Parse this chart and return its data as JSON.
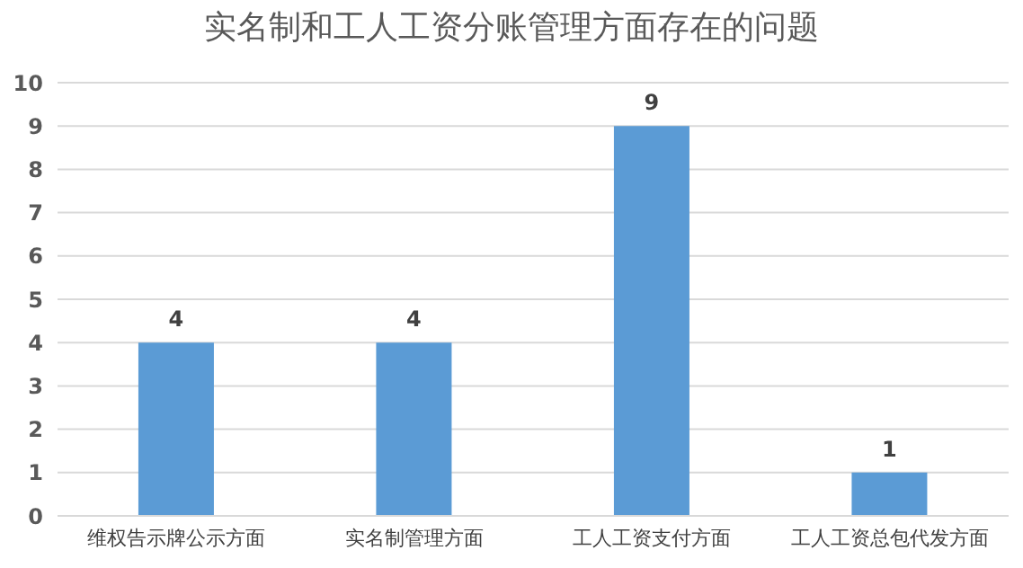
{
  "chart_data": {
    "type": "bar",
    "title": "实名制和工人工资分账管理方面存在的问题",
    "categories": [
      "维权告示牌公示方面",
      "实名制管理方面",
      "工人工资支付方面",
      "工人工资总包代发方面"
    ],
    "values": [
      4,
      4,
      9,
      1
    ],
    "color": "#5b9bd5",
    "ylim": [
      0,
      10
    ],
    "yticks": [
      0,
      1,
      2,
      3,
      4,
      5,
      6,
      7,
      8,
      9,
      10
    ],
    "grid": "y",
    "data_labels": true
  }
}
